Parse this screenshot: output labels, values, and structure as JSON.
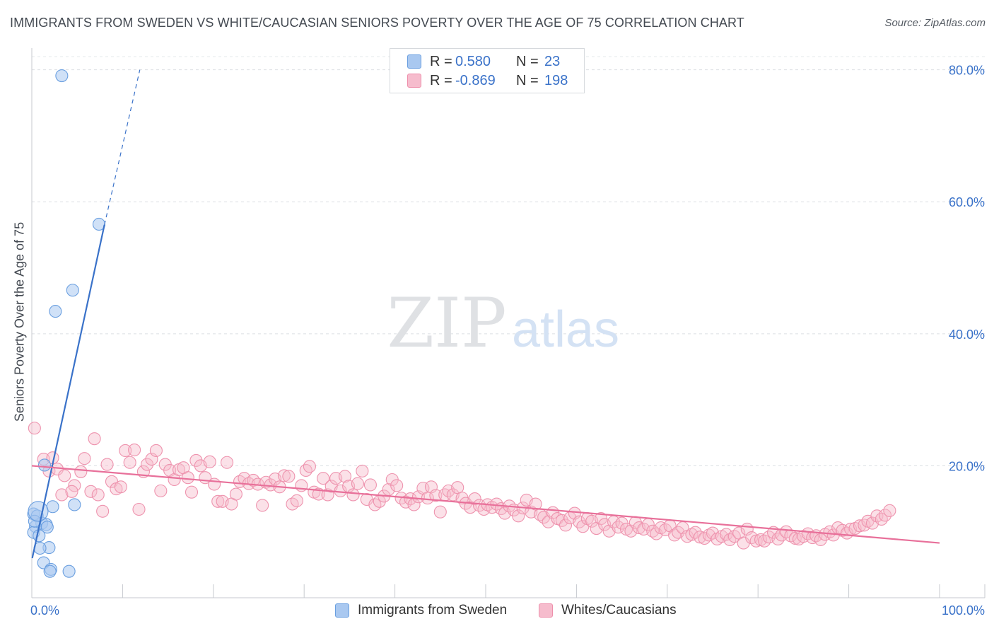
{
  "header": {
    "title": "IMMIGRANTS FROM SWEDEN VS WHITE/CAUCASIAN SENIORS POVERTY OVER THE AGE OF 75 CORRELATION CHART",
    "source": "Source: ZipAtlas.com"
  },
  "watermark": {
    "zip": "ZIP",
    "atlas": "atlas"
  },
  "legend": {
    "rows": [
      {
        "r_label": "R =",
        "r_value": "0.580",
        "n_label": "N =",
        "n_value": "23",
        "color": "#a9c8f0",
        "stroke": "#6a9fe0"
      },
      {
        "r_label": "R =",
        "r_value": "-0.869",
        "n_label": "N =",
        "n_value": "198",
        "color": "#f6bccd",
        "stroke": "#ee8fab"
      }
    ]
  },
  "bottom_legend": {
    "items": [
      {
        "label": "Immigrants from Sweden",
        "color": "#a9c8f0",
        "stroke": "#6a9fe0"
      },
      {
        "label": "Whites/Caucasians",
        "color": "#f6bccd",
        "stroke": "#ee8fab"
      }
    ]
  },
  "chart_data": {
    "type": "scatter",
    "title": "IMMIGRANTS FROM SWEDEN VS WHITE/CAUCASIAN SENIORS POVERTY OVER THE AGE OF 75 CORRELATION CHART",
    "xlabel": "",
    "ylabel": "Seniors Poverty Over the Age of 75",
    "xlim": [
      0,
      100
    ],
    "ylim": [
      0,
      82
    ],
    "x_tick_labels": [
      "0.0%",
      "100.0%"
    ],
    "y_ticks": [
      20,
      40,
      60,
      80
    ],
    "y_tick_labels": [
      "20.0%",
      "40.0%",
      "60.0%",
      "80.0%"
    ],
    "grid": true,
    "legend_position": "top-center",
    "colors": {
      "sweden": "#3a72c9",
      "white": "#e8709a",
      "axis_text": "#3a72c9"
    },
    "series": [
      {
        "name": "Immigrants from Sweden",
        "r": 0.58,
        "n": 23,
        "trend": {
          "x0": 0.05,
          "y0": 6.0,
          "x1": 8.0,
          "y1": 56.5,
          "dashed_to_x": 11.9,
          "dashed_to_y": 80.0
        },
        "points": [
          [
            3.3,
            79.1
          ],
          [
            7.4,
            56.6
          ],
          [
            4.5,
            46.6
          ],
          [
            2.6,
            43.4
          ],
          [
            1.4,
            20.1
          ],
          [
            2.3,
            13.8
          ],
          [
            4.7,
            14.1
          ],
          [
            0.2,
            12.7
          ],
          [
            0.6,
            12.4
          ],
          [
            1.1,
            11.3
          ],
          [
            1.6,
            11.1
          ],
          [
            1.7,
            10.7
          ],
          [
            0.4,
            10.8
          ],
          [
            0.2,
            9.9
          ],
          [
            0.8,
            9.4
          ],
          [
            1.9,
            7.6
          ],
          [
            0.9,
            7.5
          ],
          [
            1.3,
            5.3
          ],
          [
            2.1,
            4.3
          ],
          [
            2.0,
            4.0
          ],
          [
            4.1,
            4.0
          ],
          [
            0.3,
            11.6
          ],
          [
            0.7,
            13.1
          ]
        ]
      },
      {
        "name": "Whites/Caucasians",
        "r": -0.869,
        "n": 198,
        "trend": {
          "x0": 0.0,
          "y0": 20.0,
          "x1": 100.0,
          "y1": 8.3
        },
        "points": [
          [
            0.3,
            25.7
          ],
          [
            1.3,
            21.0
          ],
          [
            2.3,
            21.2
          ],
          [
            1.9,
            19.2
          ],
          [
            2.8,
            19.5
          ],
          [
            3.6,
            18.5
          ],
          [
            4.7,
            17.0
          ],
          [
            3.3,
            15.6
          ],
          [
            4.4,
            16.1
          ],
          [
            5.4,
            19.1
          ],
          [
            5.8,
            21.1
          ],
          [
            6.5,
            16.1
          ],
          [
            6.9,
            24.1
          ],
          [
            7.3,
            15.6
          ],
          [
            7.8,
            13.1
          ],
          [
            8.3,
            20.2
          ],
          [
            8.8,
            17.6
          ],
          [
            9.3,
            16.5
          ],
          [
            9.8,
            16.8
          ],
          [
            10.3,
            22.3
          ],
          [
            10.8,
            20.5
          ],
          [
            11.3,
            22.4
          ],
          [
            11.8,
            13.4
          ],
          [
            12.3,
            19.1
          ],
          [
            12.7,
            20.2
          ],
          [
            13.2,
            21.0
          ],
          [
            13.7,
            22.3
          ],
          [
            14.2,
            16.2
          ],
          [
            14.7,
            20.2
          ],
          [
            15.2,
            19.3
          ],
          [
            15.7,
            17.9
          ],
          [
            16.2,
            19.4
          ],
          [
            16.7,
            19.7
          ],
          [
            17.2,
            18.2
          ],
          [
            17.6,
            16.0
          ],
          [
            18.1,
            20.8
          ],
          [
            18.6,
            20.0
          ],
          [
            19.1,
            18.2
          ],
          [
            19.6,
            20.6
          ],
          [
            20.1,
            17.2
          ],
          [
            20.5,
            14.6
          ],
          [
            21.0,
            14.6
          ],
          [
            21.5,
            20.5
          ],
          [
            22.0,
            14.2
          ],
          [
            22.5,
            15.7
          ],
          [
            22.9,
            17.6
          ],
          [
            23.4,
            18.1
          ],
          [
            23.9,
            17.3
          ],
          [
            24.4,
            17.8
          ],
          [
            24.9,
            17.2
          ],
          [
            25.4,
            14.0
          ],
          [
            25.8,
            17.5
          ],
          [
            26.3,
            17.1
          ],
          [
            26.8,
            18.0
          ],
          [
            27.3,
            16.8
          ],
          [
            27.8,
            18.5
          ],
          [
            28.3,
            18.4
          ],
          [
            28.7,
            14.2
          ],
          [
            29.2,
            14.7
          ],
          [
            29.7,
            17.0
          ],
          [
            30.2,
            19.3
          ],
          [
            30.6,
            19.9
          ],
          [
            31.1,
            16.0
          ],
          [
            31.6,
            15.7
          ],
          [
            32.1,
            18.1
          ],
          [
            32.6,
            15.6
          ],
          [
            33.0,
            16.9
          ],
          [
            33.5,
            18.1
          ],
          [
            34.0,
            16.2
          ],
          [
            34.5,
            18.4
          ],
          [
            34.9,
            16.9
          ],
          [
            35.4,
            15.6
          ],
          [
            35.9,
            17.3
          ],
          [
            36.4,
            19.2
          ],
          [
            36.9,
            14.9
          ],
          [
            37.3,
            17.1
          ],
          [
            37.8,
            14.1
          ],
          [
            38.3,
            14.6
          ],
          [
            38.8,
            15.4
          ],
          [
            39.3,
            16.4
          ],
          [
            39.7,
            17.9
          ],
          [
            40.2,
            17.0
          ],
          [
            40.7,
            15.1
          ],
          [
            41.2,
            14.5
          ],
          [
            41.7,
            15.0
          ],
          [
            42.1,
            14.1
          ],
          [
            42.6,
            15.3
          ],
          [
            43.1,
            16.6
          ],
          [
            43.6,
            15.1
          ],
          [
            44.0,
            16.8
          ],
          [
            44.5,
            15.5
          ],
          [
            45.0,
            13.0
          ],
          [
            45.5,
            15.6
          ],
          [
            45.9,
            16.2
          ],
          [
            46.4,
            15.6
          ],
          [
            46.9,
            16.7
          ],
          [
            47.4,
            15.1
          ],
          [
            47.8,
            14.3
          ],
          [
            48.3,
            13.7
          ],
          [
            48.8,
            15.0
          ],
          [
            49.3,
            14.0
          ],
          [
            49.8,
            13.4
          ],
          [
            50.2,
            14.1
          ],
          [
            50.7,
            13.7
          ],
          [
            51.2,
            14.2
          ],
          [
            51.7,
            13.5
          ],
          [
            52.1,
            12.8
          ],
          [
            52.6,
            13.9
          ],
          [
            53.1,
            13.3
          ],
          [
            53.6,
            12.4
          ],
          [
            54.1,
            13.6
          ],
          [
            54.5,
            14.8
          ],
          [
            55.0,
            13.0
          ],
          [
            55.5,
            14.2
          ],
          [
            56.0,
            12.6
          ],
          [
            56.4,
            12.2
          ],
          [
            56.9,
            11.5
          ],
          [
            57.4,
            12.9
          ],
          [
            57.9,
            12.0
          ],
          [
            58.4,
            11.7
          ],
          [
            58.8,
            11.0
          ],
          [
            59.3,
            12.1
          ],
          [
            59.8,
            12.8
          ],
          [
            60.3,
            11.5
          ],
          [
            60.7,
            10.8
          ],
          [
            61.2,
            12.0
          ],
          [
            61.7,
            11.6
          ],
          [
            62.2,
            10.5
          ],
          [
            62.7,
            12.0
          ],
          [
            63.1,
            11.1
          ],
          [
            63.6,
            10.1
          ],
          [
            64.1,
            11.5
          ],
          [
            64.6,
            10.7
          ],
          [
            65.0,
            11.3
          ],
          [
            65.5,
            10.4
          ],
          [
            66.0,
            10.1
          ],
          [
            66.5,
            11.4
          ],
          [
            66.9,
            10.6
          ],
          [
            67.4,
            10.4
          ],
          [
            67.9,
            11.1
          ],
          [
            68.4,
            10.1
          ],
          [
            68.8,
            9.7
          ],
          [
            69.3,
            10.6
          ],
          [
            69.8,
            10.3
          ],
          [
            70.3,
            10.9
          ],
          [
            70.8,
            9.5
          ],
          [
            71.2,
            9.9
          ],
          [
            71.7,
            10.6
          ],
          [
            72.2,
            9.3
          ],
          [
            72.7,
            9.6
          ],
          [
            73.1,
            9.9
          ],
          [
            73.6,
            9.2
          ],
          [
            74.1,
            9.0
          ],
          [
            74.6,
            9.5
          ],
          [
            75.0,
            9.8
          ],
          [
            75.5,
            8.9
          ],
          [
            76.0,
            9.3
          ],
          [
            76.5,
            9.6
          ],
          [
            76.9,
            8.8
          ],
          [
            77.4,
            9.3
          ],
          [
            77.9,
            9.8
          ],
          [
            78.4,
            8.3
          ],
          [
            78.8,
            10.4
          ],
          [
            79.3,
            9.1
          ],
          [
            79.8,
            8.6
          ],
          [
            80.3,
            8.8
          ],
          [
            80.7,
            8.6
          ],
          [
            81.2,
            9.2
          ],
          [
            81.7,
            9.9
          ],
          [
            82.2,
            8.9
          ],
          [
            82.6,
            9.5
          ],
          [
            83.1,
            10.0
          ],
          [
            83.6,
            9.4
          ],
          [
            84.1,
            9.0
          ],
          [
            84.5,
            8.9
          ],
          [
            85.0,
            9.3
          ],
          [
            85.5,
            9.7
          ],
          [
            86.0,
            9.1
          ],
          [
            86.4,
            9.4
          ],
          [
            86.9,
            8.8
          ],
          [
            87.4,
            9.6
          ],
          [
            87.9,
            10.0
          ],
          [
            88.3,
            9.5
          ],
          [
            88.8,
            10.6
          ],
          [
            89.3,
            10.2
          ],
          [
            89.8,
            9.8
          ],
          [
            90.2,
            10.4
          ],
          [
            90.7,
            10.5
          ],
          [
            91.2,
            10.9
          ],
          [
            91.7,
            11.0
          ],
          [
            92.1,
            11.6
          ],
          [
            92.6,
            11.3
          ],
          [
            93.1,
            12.4
          ],
          [
            93.6,
            11.9
          ],
          [
            94.0,
            12.5
          ],
          [
            94.5,
            13.2
          ]
        ]
      }
    ]
  }
}
